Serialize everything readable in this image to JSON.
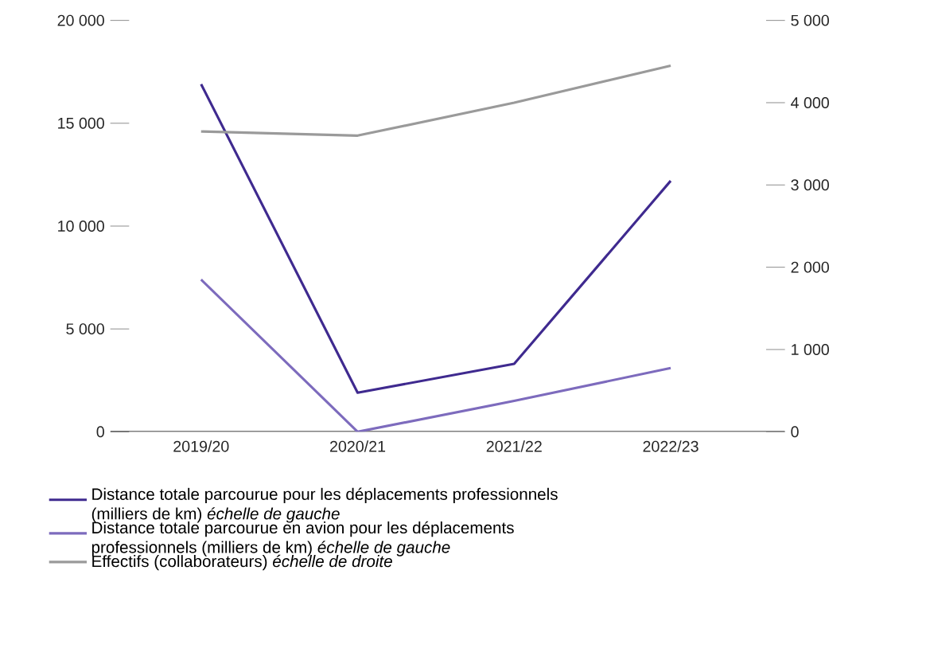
{
  "chart_data": {
    "type": "line",
    "categories": [
      "2019/20",
      "2020/21",
      "2021/22",
      "2022/23"
    ],
    "series": [
      {
        "name": "Distance totale parcourue pour les déplacements professionnels (milliers de km) *échelle de gauche*",
        "color": "#3f2a8f",
        "values": [
          16900,
          1900,
          3300,
          12200
        ]
      },
      {
        "name": "Distance totale parcourue en avion pour les déplacements professionnels (milliers de km) *échelle de gauche*",
        "color": "#7d6bbd",
        "values": [
          7400,
          0,
          1500,
          3100
        ]
      },
      {
        "name": "Effectifs (collaborateurs) *échelle de droite*",
        "color": "#9a9a9a",
        "values": [
          3650,
          3600,
          4000,
          4450
        ],
        "axis": "y2"
      }
    ],
    "ylim": [
      0,
      20000
    ],
    "yticks": [
      {
        "value": 0,
        "label": "0"
      },
      {
        "value": 5000,
        "label": "5 000"
      },
      {
        "value": 10000,
        "label": "10 000"
      },
      {
        "value": 15000,
        "label": "15 000"
      },
      {
        "value": 20000,
        "label": "20 000"
      }
    ],
    "y2lim": [
      0,
      5000
    ],
    "y2ticks": [
      {
        "value": 0,
        "label": "0"
      },
      {
        "value": 1000,
        "label": "1 000"
      },
      {
        "value": 2000,
        "label": "2 000"
      },
      {
        "value": 3000,
        "label": "3 000"
      },
      {
        "value": 4000,
        "label": "4 000"
      },
      {
        "value": 5000,
        "label": "5 000"
      }
    ],
    "legend": "bottom",
    "marker": "none",
    "line_style": "solid",
    "grid": false
  }
}
